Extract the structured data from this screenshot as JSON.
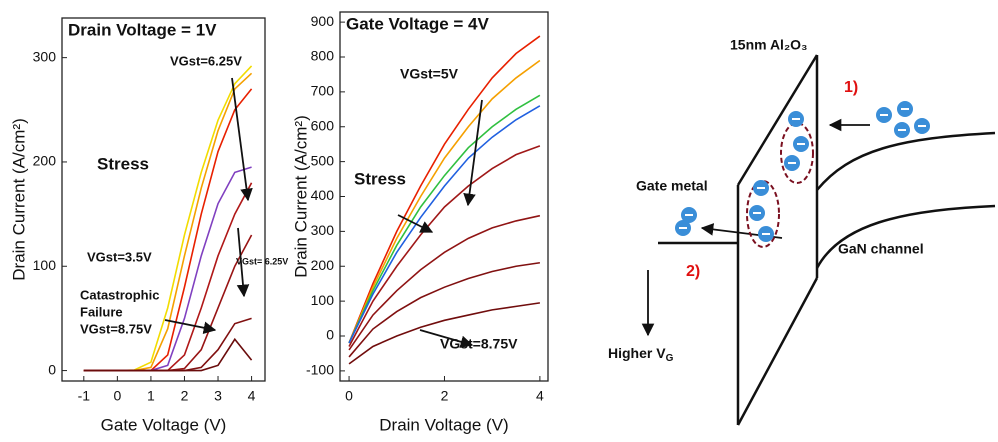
{
  "chart_data": [
    {
      "type": "line",
      "title": "Drain Voltage = 1V",
      "x_label": "Gate Voltage (V)",
      "y_label": "Drain Current (A/cm²)",
      "x": [
        -1,
        -0.5,
        0,
        0.5,
        1,
        1.5,
        2,
        2.5,
        3,
        3.5,
        4
      ],
      "series": [
        {
          "color": "#f2dc00",
          "values": [
            0,
            0,
            0,
            0.5,
            8,
            60,
            130,
            190,
            240,
            275,
            292
          ]
        },
        {
          "color": "#f5a000",
          "values": [
            0,
            0,
            0,
            0,
            3,
            40,
            110,
            175,
            230,
            270,
            285
          ]
        },
        {
          "color": "#e82000",
          "values": [
            0,
            0,
            0,
            0,
            0,
            15,
            80,
            150,
            210,
            250,
            270
          ]
        },
        {
          "color": "#8040c0",
          "values": [
            0,
            0,
            0,
            0,
            0,
            5,
            50,
            110,
            160,
            190,
            195
          ]
        },
        {
          "color": "#b01818",
          "values": [
            0,
            0,
            0,
            0,
            0,
            0,
            15,
            60,
            110,
            150,
            180
          ]
        },
        {
          "color": "#981414",
          "values": [
            0,
            0,
            0,
            0,
            0,
            0,
            2,
            20,
            60,
            100,
            130
          ]
        },
        {
          "color": "#801010",
          "values": [
            0,
            0,
            0,
            0,
            0,
            0,
            0,
            3,
            20,
            45,
            50
          ]
        },
        {
          "color": "#6a0c0c",
          "values": [
            0,
            0,
            0,
            0,
            0,
            0,
            0,
            0,
            5,
            30,
            10
          ]
        }
      ],
      "xlim": [
        -1.65,
        4.4
      ],
      "ylim": [
        -10,
        338
      ],
      "xticks": [
        -1,
        0,
        1,
        2,
        3,
        4
      ],
      "yticks": [
        0,
        100,
        200,
        300
      ],
      "annotations": [
        "VGst=6.25V",
        "Stress",
        "VGst=3.5V",
        "VGst= 6.25V",
        "Catastrophic",
        "Failure",
        "VGst=8.75V"
      ]
    },
    {
      "type": "line",
      "title": "Gate Voltage = 4V",
      "x_label": "Drain Voltage (V)",
      "y_label": "Drain Current (A/cm²)",
      "x": [
        0,
        0.5,
        1,
        1.5,
        2,
        2.5,
        3,
        3.5,
        4
      ],
      "series": [
        {
          "color": "#e82000",
          "values": [
            -20,
            150,
            300,
            430,
            550,
            650,
            740,
            810,
            860
          ]
        },
        {
          "color": "#f5a000",
          "values": [
            -20,
            140,
            280,
            400,
            510,
            600,
            680,
            740,
            790
          ]
        },
        {
          "color": "#30c040",
          "values": [
            -20,
            130,
            260,
            370,
            460,
            540,
            600,
            650,
            690
          ]
        },
        {
          "color": "#2060e0",
          "values": [
            -20,
            120,
            240,
            340,
            430,
            510,
            570,
            620,
            660
          ]
        },
        {
          "color": "#a01818",
          "values": [
            -30,
            100,
            200,
            290,
            370,
            430,
            480,
            520,
            545
          ]
        },
        {
          "color": "#901414",
          "values": [
            -40,
            60,
            130,
            190,
            240,
            280,
            310,
            330,
            345
          ]
        },
        {
          "color": "#801010",
          "values": [
            -60,
            20,
            70,
            110,
            140,
            165,
            185,
            200,
            210
          ]
        },
        {
          "color": "#700c0c",
          "values": [
            -80,
            -30,
            0,
            25,
            45,
            60,
            75,
            85,
            95
          ]
        }
      ],
      "xlim": [
        -0.19,
        4.17
      ],
      "ylim": [
        -129,
        929
      ],
      "xticks": [
        0,
        2,
        4
      ],
      "yticks": [
        -100,
        0,
        100,
        200,
        300,
        400,
        500,
        600,
        700,
        800,
        900
      ],
      "annotations": [
        "VGst=5V",
        "Stress",
        "VGst=8.75V"
      ]
    }
  ],
  "diagram": {
    "oxide": "15nm Al₂O₃",
    "step1": "1)",
    "step2": "2)",
    "gate_metal": "Gate metal",
    "channel": "GaN channel",
    "higher_vg": {
      "text": "Higher V",
      "sub": "G"
    }
  }
}
